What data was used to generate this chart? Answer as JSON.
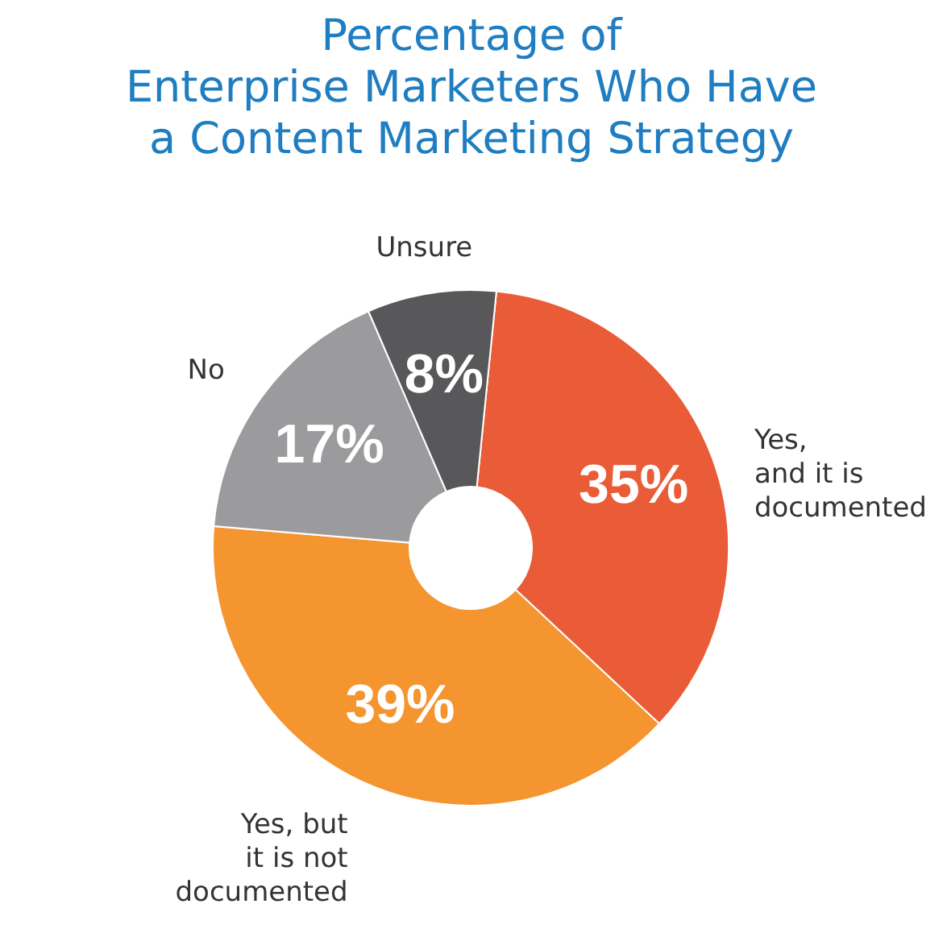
{
  "chart_data": {
    "type": "donut",
    "title": "Percentage of\nEnterprise Marketers Who Have\na Content Marketing Strategy",
    "categories": [
      "Yes,\nand it is\ndocumented",
      "Yes, but\nit is not\ndocumented",
      "No",
      "Unsure"
    ],
    "values": [
      35,
      39,
      17,
      8
    ],
    "colors": [
      "#e95c37",
      "#f4952f",
      "#9b9b9d",
      "#58585a"
    ],
    "value_labels": [
      "35%",
      "39%",
      "17%",
      "8%"
    ]
  }
}
